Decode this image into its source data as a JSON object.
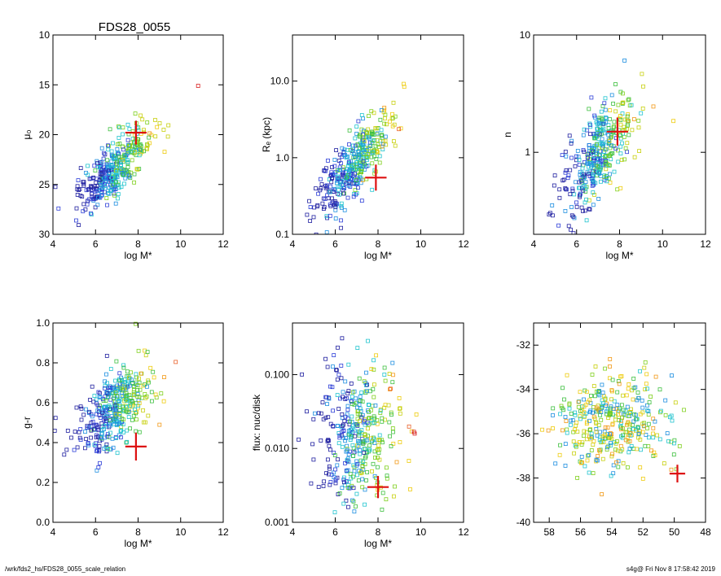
{
  "title": "FDS28_0055",
  "footer": {
    "path": "/wrk/fds2_hs/FDS28_0055_scale_relation",
    "stamp": "s4g@  Fri Nov  8 17:58:42 2019"
  },
  "chart_data": [
    {
      "type": "scatter",
      "id": "mu0",
      "xlabel": "log M*",
      "ylabel": "μ₀",
      "xlim": [
        4,
        12
      ],
      "ylim": [
        30,
        10
      ],
      "yreverse": true,
      "xticks": [
        4,
        6,
        8,
        10,
        12
      ],
      "xtick_labels": [
        "4",
        "6",
        "8",
        "10",
        "12"
      ],
      "yticks": [
        10,
        15,
        20,
        25,
        30
      ],
      "ytick_labels": [
        "10",
        "15",
        "20",
        "25",
        "30"
      ],
      "population": {
        "x_center": 6.9,
        "x_spread": 0.8,
        "slope": -1.8,
        "at": 6.9,
        "y_center": 23.4,
        "y_scatter": 1.3
      },
      "highlight": {
        "x": 7.9,
        "y": 19.8,
        "xerr": 0.5,
        "yerr": 1.2
      }
    },
    {
      "type": "scatter",
      "id": "re",
      "xlabel": "log M*",
      "ylabel": "Rₑ (kpc)",
      "xlim": [
        4,
        12
      ],
      "ylim": [
        0.1,
        40
      ],
      "ylog": true,
      "xticks": [
        4,
        6,
        8,
        10,
        12
      ],
      "xtick_labels": [
        "4",
        "6",
        "8",
        "10",
        "12"
      ],
      "yticks": [
        0.1,
        1.0,
        10.0
      ],
      "ytick_labels": [
        "0.1",
        "1.0",
        "10.0"
      ],
      "population": {
        "x_center": 6.9,
        "x_spread": 0.8,
        "slope": 0.3,
        "at": 6.9,
        "y_center": -0.1,
        "y_scatter": 0.2
      },
      "highlight": {
        "x": 7.9,
        "y": 0.55,
        "xerr": 0.5,
        "yerr_log": 0.17
      }
    },
    {
      "type": "scatter",
      "id": "n",
      "xlabel": "log M*",
      "ylabel": "n",
      "xlim": [
        4,
        12
      ],
      "ylim": [
        0.2,
        10
      ],
      "ylog": true,
      "xticks": [
        4,
        6,
        8,
        10,
        12
      ],
      "xtick_labels": [
        "4",
        "6",
        "8",
        "10",
        "12"
      ],
      "yticks": [
        1,
        10
      ],
      "ytick_labels": [
        "1",
        "10"
      ],
      "population": {
        "x_center": 6.9,
        "x_spread": 0.8,
        "slope": 0.2,
        "at": 6.9,
        "y_center": -0.05,
        "y_scatter": 0.2
      },
      "highlight": {
        "x": 7.9,
        "y": 1.5,
        "xerr": 0.5,
        "yerr_log": 0.12
      }
    },
    {
      "type": "scatter",
      "id": "gr",
      "xlabel": "log M*",
      "ylabel": "g-r",
      "xlim": [
        4,
        12
      ],
      "ylim": [
        0.0,
        1.0
      ],
      "xticks": [
        4,
        6,
        8,
        10,
        12
      ],
      "xtick_labels": [
        "4",
        "6",
        "8",
        "10",
        "12"
      ],
      "yticks": [
        0.0,
        0.2,
        0.4,
        0.6,
        0.8,
        1.0
      ],
      "ytick_labels": [
        "0.0",
        "0.2",
        "0.4",
        "0.6",
        "0.8",
        "1.0"
      ],
      "population": {
        "x_center": 6.9,
        "x_spread": 0.8,
        "slope": 0.07,
        "at": 6.9,
        "y_center": 0.57,
        "y_scatter": 0.1
      },
      "highlight": {
        "x": 7.9,
        "y": 0.38,
        "xerr": 0.5,
        "yerr": 0.07
      }
    },
    {
      "type": "scatter",
      "id": "flux",
      "xlabel": "log M*",
      "ylabel": "flux: nuc/disk",
      "xlim": [
        4,
        12
      ],
      "ylim": [
        0.001,
        0.5
      ],
      "ylog": true,
      "xticks": [
        4,
        6,
        8,
        10,
        12
      ],
      "xtick_labels": [
        "4",
        "6",
        "8",
        "10",
        "12"
      ],
      "yticks": [
        0.001,
        0.01,
        0.1
      ],
      "ytick_labels": [
        "0.001",
        "0.010",
        "0.100"
      ],
      "population": {
        "x_center": 7.0,
        "x_spread": 0.9,
        "slope": 0.0,
        "at": 7.0,
        "y_center": -1.8,
        "y_scatter": 0.45
      },
      "highlight": {
        "x": 8.0,
        "y": 0.003,
        "xerr": 0.5,
        "yerr_log": 0.15
      }
    },
    {
      "type": "scatter",
      "id": "position",
      "xlabel": "",
      "ylabel": "",
      "xlim": [
        59,
        48
      ],
      "ylim": [
        -40,
        -31
      ],
      "xreverse": true,
      "xticks": [
        58,
        56,
        54,
        52,
        50,
        48
      ],
      "xtick_labels": [
        "58",
        "56",
        "54",
        "52",
        "50",
        "48"
      ],
      "yticks": [
        -40,
        -38,
        -36,
        -34,
        -32
      ],
      "ytick_labels": [
        "-40",
        "-38",
        "-36",
        "-34",
        "-32"
      ],
      "population": {
        "x_center": 54.0,
        "x_spread": 1.7,
        "slope": 0.0,
        "at": 54.0,
        "y_center": -35.5,
        "y_scatter": 1.1
      },
      "highlight": {
        "x": 49.8,
        "y": -37.8,
        "xerr": 0.5,
        "yerr": 0.4
      }
    }
  ],
  "colors": {
    "highlight": "#dd1111",
    "axis": "#000000"
  }
}
